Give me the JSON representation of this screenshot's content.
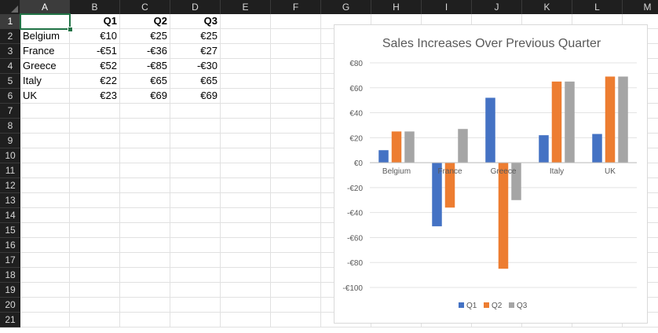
{
  "sheet": {
    "columns": [
      "A",
      "B",
      "C",
      "D",
      "E",
      "F",
      "G",
      "H",
      "I",
      "J",
      "K",
      "L",
      "M"
    ],
    "rows": [
      "1",
      "2",
      "3",
      "4",
      "5",
      "6",
      "7",
      "8",
      "9",
      "10",
      "11",
      "12",
      "13",
      "14",
      "15",
      "16",
      "17",
      "18",
      "19",
      "20",
      "21"
    ],
    "selected_cell": "A1",
    "table": {
      "headers": [
        "",
        "Q1",
        "Q2",
        "Q3"
      ],
      "data": [
        [
          "Belgium",
          "€10",
          "€25",
          "€25"
        ],
        [
          "France",
          "-€51",
          "-€36",
          "€27"
        ],
        [
          "Greece",
          "€52",
          "-€85",
          "-€30"
        ],
        [
          "Italy",
          "€22",
          "€65",
          "€65"
        ],
        [
          "UK",
          "€23",
          "€69",
          "€69"
        ]
      ]
    }
  },
  "chart_data": {
    "type": "bar",
    "title": "Sales Increases Over Previous Quarter",
    "categories": [
      "Belgium",
      "France",
      "Greece",
      "Italy",
      "UK"
    ],
    "series": [
      {
        "name": "Q1",
        "values": [
          10,
          -51,
          52,
          22,
          23
        ],
        "color": "#4472c4"
      },
      {
        "name": "Q2",
        "values": [
          25,
          -36,
          -85,
          65,
          69
        ],
        "color": "#ed7d31"
      },
      {
        "name": "Q3",
        "values": [
          25,
          27,
          -30,
          65,
          69
        ],
        "color": "#a5a5a5"
      }
    ],
    "ylim": [
      -100,
      80
    ],
    "yticks": [
      80,
      60,
      40,
      20,
      0,
      -20,
      -40,
      -60,
      -80,
      -100
    ],
    "ytick_labels": [
      "€80",
      "€60",
      "€40",
      "€20",
      "€0",
      "-€20",
      "-€40",
      "-€60",
      "-€80",
      "-€100"
    ],
    "grid": true,
    "legend": "bottom"
  }
}
